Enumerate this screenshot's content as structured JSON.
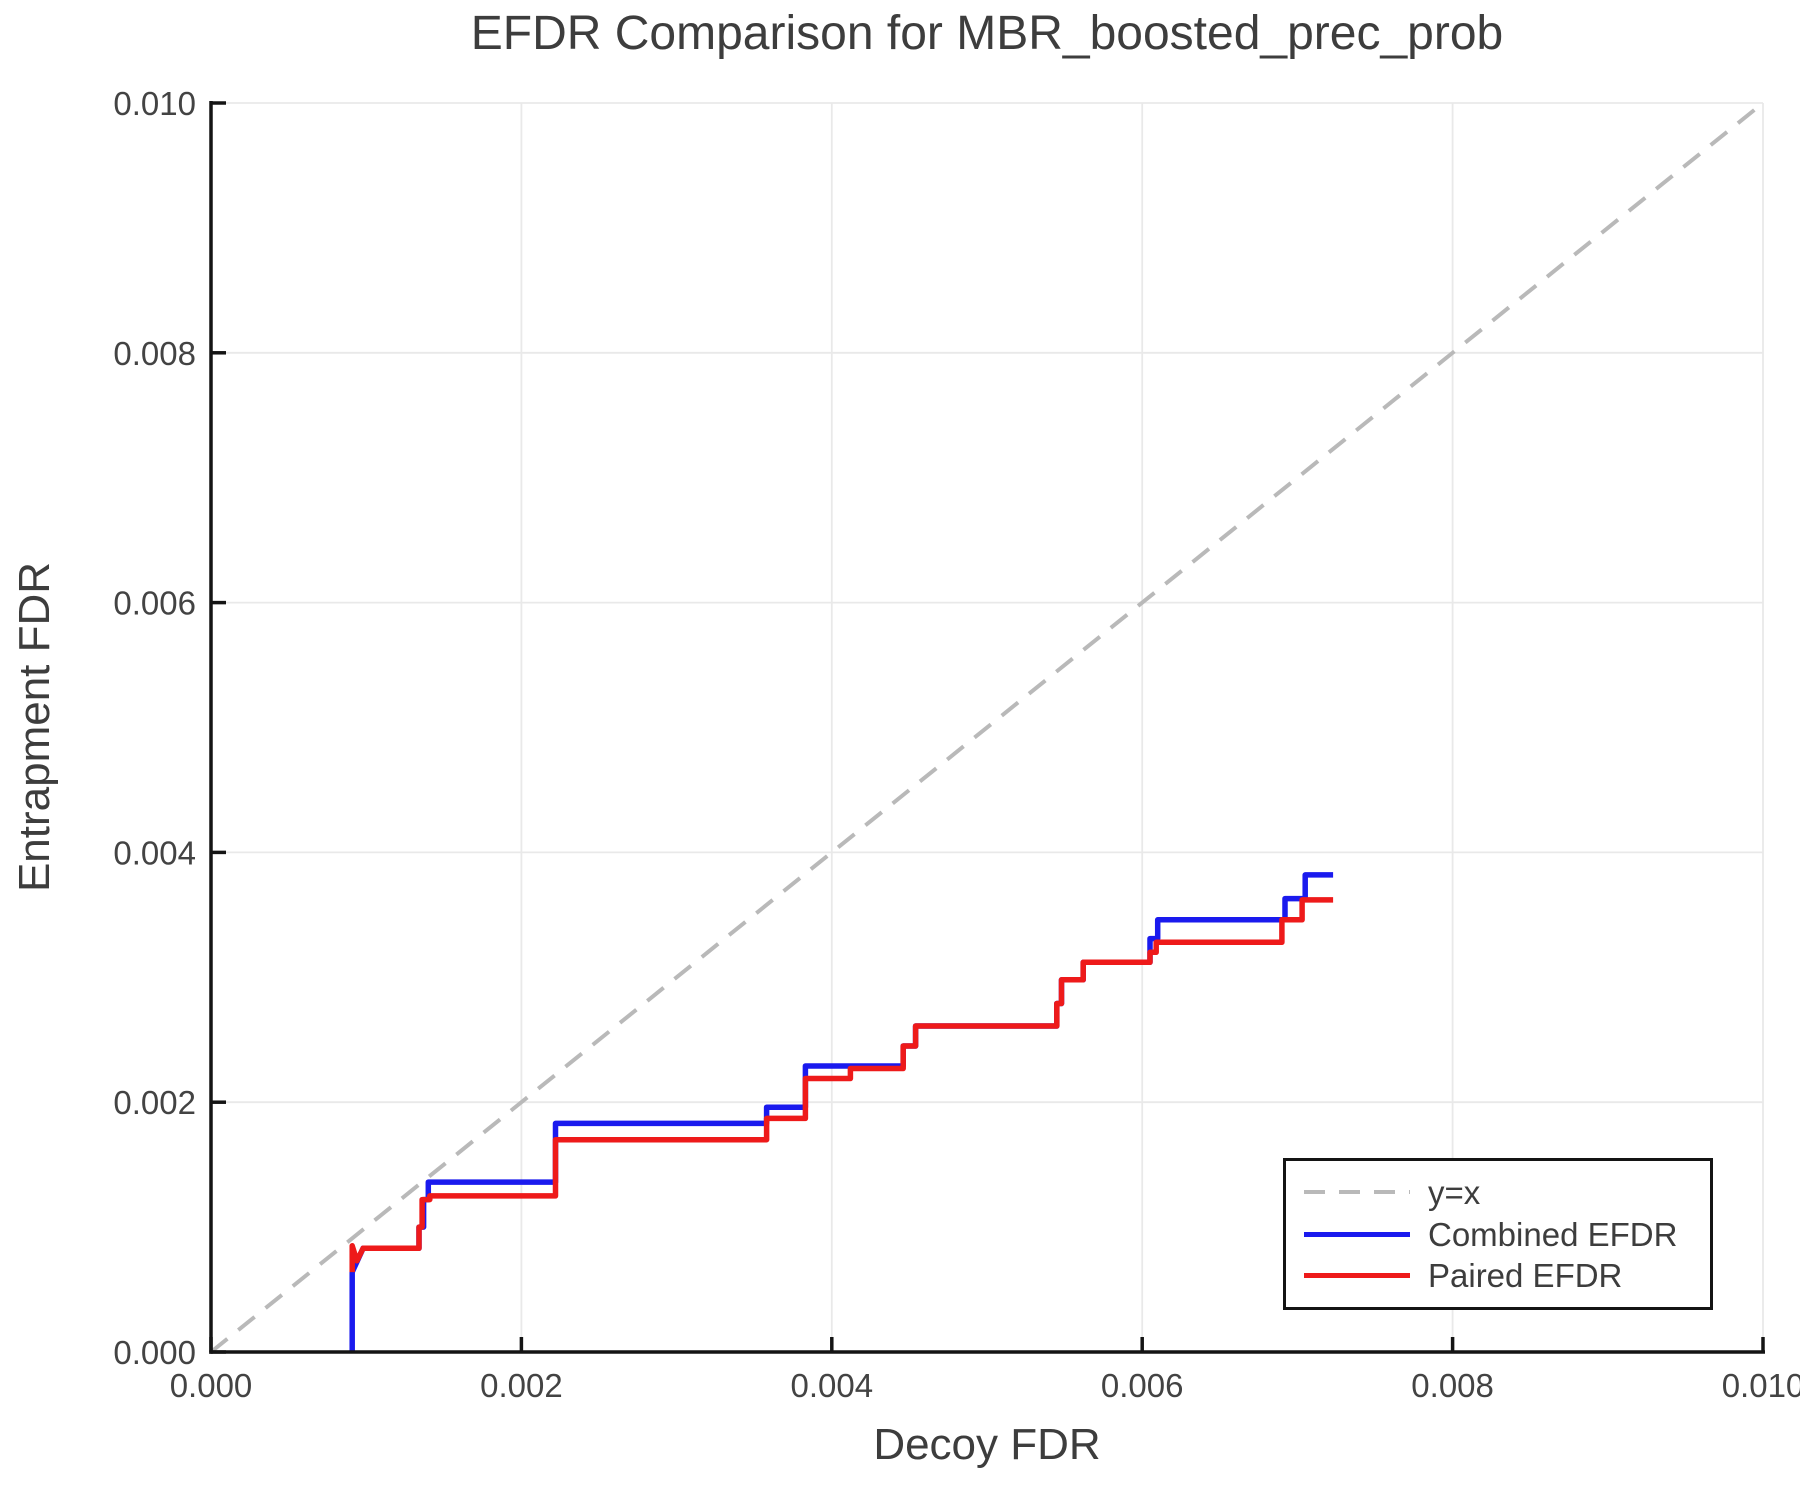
{
  "chart_data": {
    "type": "line",
    "title": "EFDR Comparison for MBR_boosted_prec_prob",
    "xlabel": "Decoy FDR",
    "ylabel": "Entrapment FDR",
    "xlim": [
      0.0,
      0.01
    ],
    "ylim": [
      0.0,
      0.01
    ],
    "xticks": [
      0.0,
      0.002,
      0.004,
      0.006,
      0.008,
      0.01
    ],
    "yticks": [
      0.0,
      0.002,
      0.004,
      0.006,
      0.008,
      0.01
    ],
    "xtick_labels": [
      "0.000",
      "0.002",
      "0.004",
      "0.006",
      "0.008",
      "0.010"
    ],
    "ytick_labels": [
      "0.000",
      "0.002",
      "0.004",
      "0.006",
      "0.008",
      "0.010"
    ],
    "grid": true,
    "legend_position": "lower right",
    "colors": {
      "grid": "#e9e9e9",
      "spine": "#141414",
      "tick_text": "#434343",
      "label_text": "#3d3d3d"
    },
    "series": [
      {
        "name": "y=x",
        "color": "#b9b9b9",
        "style": "dashed",
        "width": 4,
        "points": [
          [
            0.0,
            0.0
          ],
          [
            0.01,
            0.01
          ]
        ]
      },
      {
        "name": "Combined EFDR",
        "color": "#1a1aee",
        "style": "solid",
        "width": 5.5,
        "points": [
          [
            0.00091,
            0.0
          ],
          [
            0.00091,
            0.00064
          ],
          [
            0.00098,
            0.00083
          ],
          [
            0.00134,
            0.00083
          ],
          [
            0.00134,
            0.001
          ],
          [
            0.00137,
            0.001
          ],
          [
            0.00137,
            0.00122
          ],
          [
            0.0014,
            0.00122
          ],
          [
            0.0014,
            0.00136
          ],
          [
            0.00222,
            0.00136
          ],
          [
            0.00222,
            0.00183
          ],
          [
            0.00358,
            0.00183
          ],
          [
            0.00358,
            0.00196
          ],
          [
            0.00383,
            0.00196
          ],
          [
            0.00383,
            0.00229
          ],
          [
            0.00446,
            0.00229
          ],
          [
            0.00446,
            0.00245
          ],
          [
            0.00454,
            0.00245
          ],
          [
            0.00454,
            0.00261
          ],
          [
            0.00545,
            0.00261
          ],
          [
            0.00545,
            0.00279
          ],
          [
            0.00548,
            0.00279
          ],
          [
            0.00548,
            0.00298
          ],
          [
            0.00562,
            0.00298
          ],
          [
            0.00562,
            0.00312
          ],
          [
            0.00605,
            0.00312
          ],
          [
            0.00605,
            0.00331
          ],
          [
            0.0061,
            0.00331
          ],
          [
            0.0061,
            0.00346
          ],
          [
            0.00692,
            0.00346
          ],
          [
            0.00692,
            0.00363
          ],
          [
            0.00705,
            0.00363
          ],
          [
            0.00705,
            0.00382
          ],
          [
            0.00723,
            0.00382
          ]
        ]
      },
      {
        "name": "Paired EFDR",
        "color": "#ee1a1a",
        "style": "solid",
        "width": 5.5,
        "points": [
          [
            0.00091,
            0.00064
          ],
          [
            0.00091,
            0.00085
          ],
          [
            0.00094,
            0.00073
          ],
          [
            0.00098,
            0.00083
          ],
          [
            0.00134,
            0.00083
          ],
          [
            0.00134,
            0.001
          ],
          [
            0.00136,
            0.001
          ],
          [
            0.00136,
            0.00122
          ],
          [
            0.00141,
            0.00122
          ],
          [
            0.00141,
            0.00125
          ],
          [
            0.00222,
            0.00125
          ],
          [
            0.00222,
            0.0017
          ],
          [
            0.00358,
            0.0017
          ],
          [
            0.00358,
            0.00187
          ],
          [
            0.00383,
            0.00187
          ],
          [
            0.00383,
            0.00219
          ],
          [
            0.00412,
            0.00219
          ],
          [
            0.00412,
            0.00227
          ],
          [
            0.00446,
            0.00227
          ],
          [
            0.00446,
            0.00245
          ],
          [
            0.00454,
            0.00245
          ],
          [
            0.00454,
            0.00261
          ],
          [
            0.00545,
            0.00261
          ],
          [
            0.00545,
            0.00279
          ],
          [
            0.00548,
            0.00279
          ],
          [
            0.00548,
            0.00298
          ],
          [
            0.00562,
            0.00298
          ],
          [
            0.00562,
            0.00312
          ],
          [
            0.00605,
            0.00312
          ],
          [
            0.00605,
            0.0032
          ],
          [
            0.00609,
            0.0032
          ],
          [
            0.00609,
            0.00328
          ],
          [
            0.0069,
            0.00328
          ],
          [
            0.0069,
            0.00346
          ],
          [
            0.00703,
            0.00346
          ],
          [
            0.00703,
            0.00362
          ],
          [
            0.00723,
            0.00362
          ]
        ]
      }
    ]
  }
}
